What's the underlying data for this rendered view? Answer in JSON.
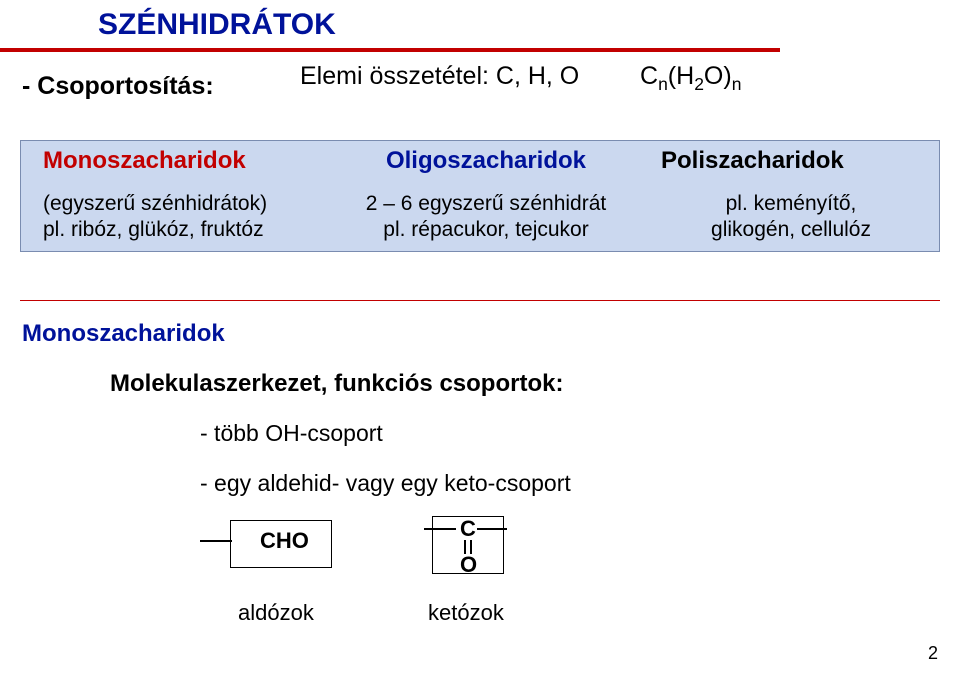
{
  "title": "SZÉNHIDRÁTOK",
  "csoportositas": "- Csoportosítás:",
  "elemi": "Elemi összetétel: C, H, O",
  "formula": {
    "prefix": "C",
    "sub1": "n",
    "mid": "(H",
    "sub2": "2",
    "mid2": "O)",
    "sub3": "n"
  },
  "cols": {
    "mono": {
      "hdr": "Monoszacharidok",
      "l1": "(egyszerű szénhidrátok)",
      "l2": "pl. ribóz, glükóz, fruktóz"
    },
    "oligo": {
      "hdr": "Oligoszacharidok",
      "l1": "2 – 6 egyszerű szénhidrát",
      "l2": "pl. répacukor, tejcukor"
    },
    "poli": {
      "hdr": "Poliszacharidok",
      "l1": "pl. keményítő,",
      "l2": "glikogén, cellulóz"
    }
  },
  "mono2": "Monoszacharidok",
  "molszer": "Molekulaszerkezet, funkciós csoportok:",
  "bullet1": "- több OH-csoport",
  "bullet2": "- egy aldehid- vagy egy keto-csoport",
  "chem": {
    "cho": "CHO",
    "c": "C",
    "o": "O",
    "ald": "aldózok",
    "ket": "ketózok"
  },
  "page": "2",
  "colors": {
    "title_blue": "#00129a",
    "red": "#c20000",
    "band_bg": "#cbd8ef"
  }
}
